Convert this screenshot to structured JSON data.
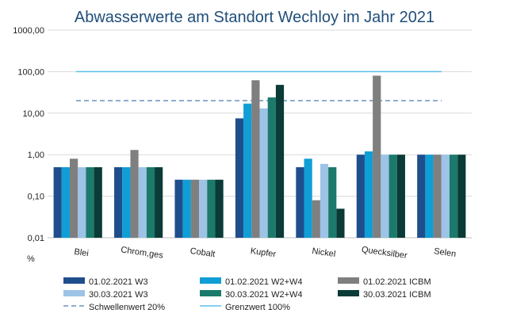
{
  "chart_data": {
    "type": "bar",
    "title": "Abwasserwerte am Standort Wechloy im Jahr 2021",
    "ylabel": "%",
    "yscale": "log",
    "ylim": [
      0.01,
      1000
    ],
    "yticks": [
      "1000,00",
      "100,00",
      "10,00",
      "1,00",
      "0,10",
      "0,01"
    ],
    "grid": true,
    "legend_position": "bottom",
    "categories": [
      "Blei",
      "Chrom,ges",
      "Cobalt",
      "Kupfer",
      "Nickel",
      "Quecksilber",
      "Selen"
    ],
    "series": [
      {
        "name": "01.02.2021 W3",
        "color": "#1f4e8c",
        "values": [
          0.5,
          0.5,
          0.25,
          7.5,
          0.5,
          1.0,
          1.0
        ]
      },
      {
        "name": "01.02.2021 W2+W4",
        "color": "#0f9ed5",
        "values": [
          0.5,
          0.5,
          0.25,
          17,
          0.8,
          1.2,
          1.0
        ]
      },
      {
        "name": "01.02.2021 ICBM",
        "color": "#7f7f7f",
        "values": [
          0.8,
          1.3,
          0.25,
          62,
          0.08,
          80,
          1.0
        ]
      },
      {
        "name": "30.03.2021 W3",
        "color": "#9dc3e6",
        "values": [
          0.5,
          0.5,
          0.25,
          13,
          0.6,
          1.0,
          1.0
        ]
      },
      {
        "name": "30.03.2021 W2+W4",
        "color": "#1b7a6b",
        "values": [
          0.5,
          0.5,
          0.25,
          24,
          0.5,
          1.0,
          1.0
        ]
      },
      {
        "name": "30.03.2021 ICBM",
        "color": "#0a3b36",
        "values": [
          0.5,
          0.5,
          0.25,
          48,
          0.05,
          1.0,
          1.0
        ]
      }
    ],
    "reference_lines": [
      {
        "name": "Schwellenwert 20%",
        "value": 20,
        "color": "#6f8fbf",
        "style": "dashed"
      },
      {
        "name": "Grenzwert 100%",
        "value": 100,
        "color": "#5bc0eb",
        "style": "solid"
      }
    ]
  }
}
